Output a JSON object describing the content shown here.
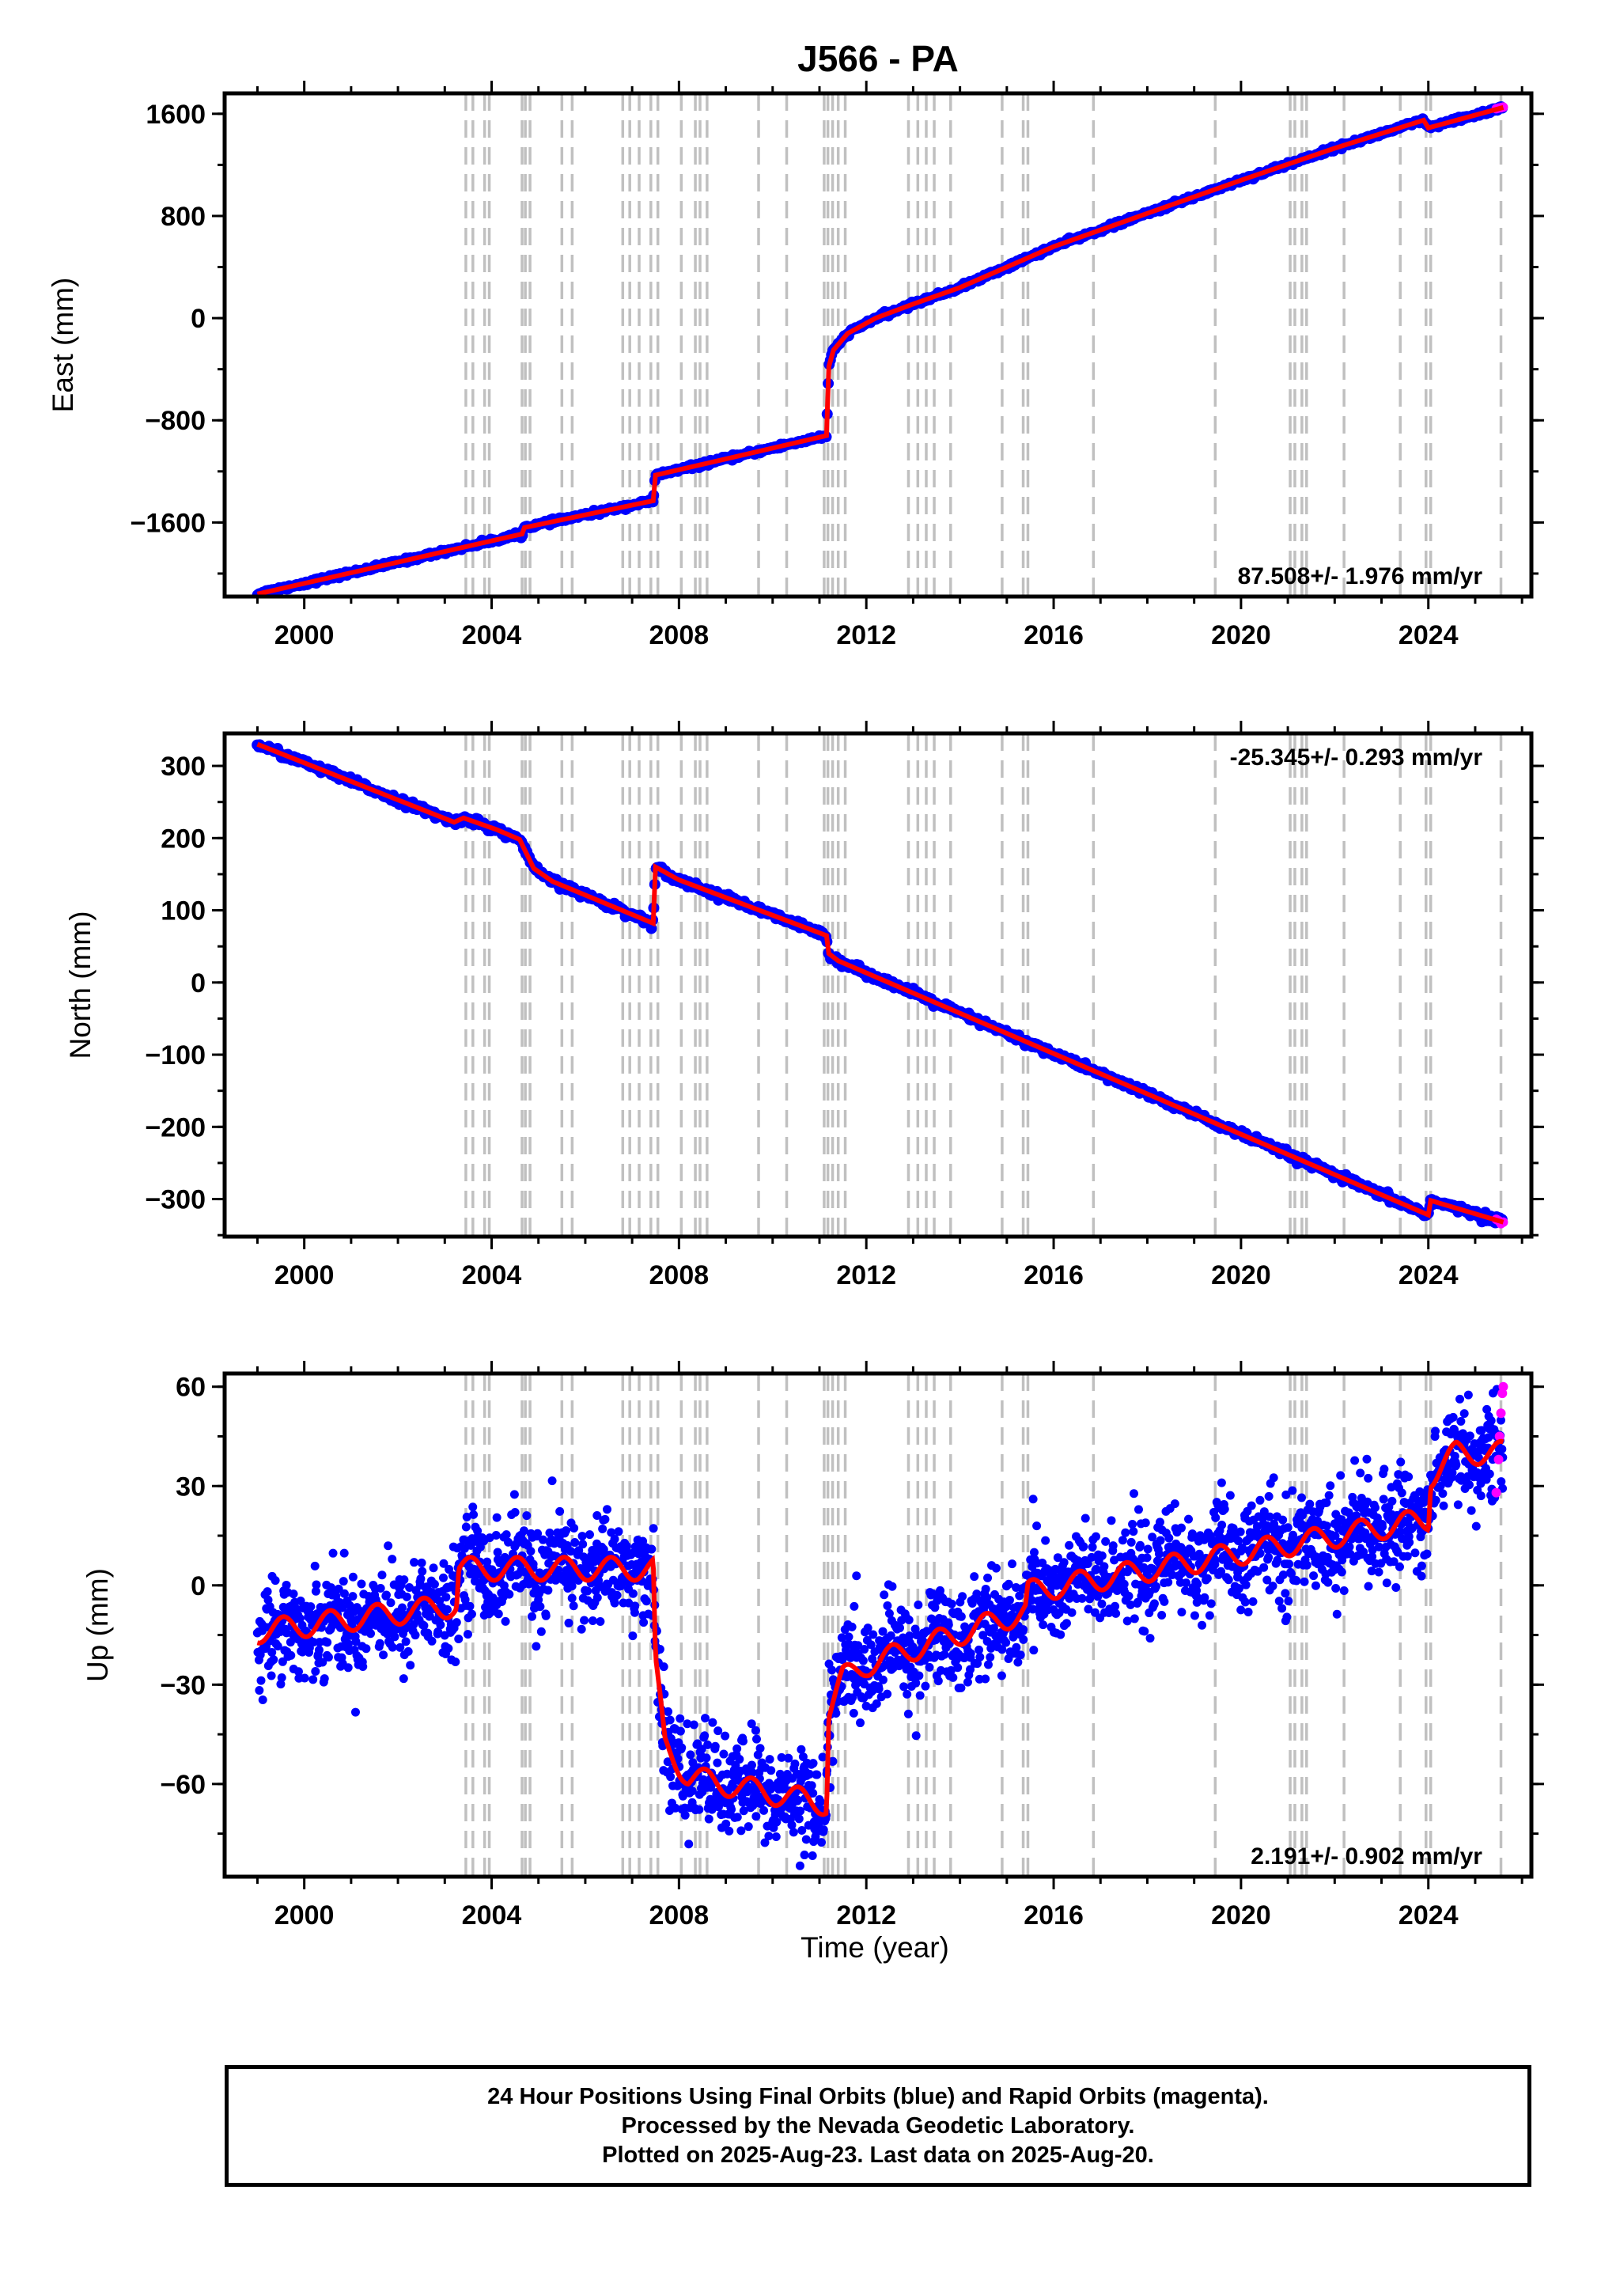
{
  "title": "J566 - PA",
  "xlabel": "Time (year)",
  "footer": {
    "line1": "24 Hour Positions Using Final Orbits (blue) and Rapid Orbits (magenta).",
    "line2": "Processed by the Nevada Geodetic Laboratory.",
    "line3": "Plotted on 2025-Aug-23. Last data on 2025-Aug-20."
  },
  "colors": {
    "final_orbits": "#0000ff",
    "rapid_orbits": "#ff00ff",
    "model": "#ff0000",
    "event_lines": "#c0c0c0"
  },
  "chart_data": [
    {
      "type": "scatter",
      "name": "east",
      "ylabel": "East (mm)",
      "xlim": [
        1998.3,
        2026.2
      ],
      "ylim": [
        -2180,
        1760
      ],
      "xticks": [
        2000,
        2004,
        2008,
        2012,
        2016,
        2020,
        2024
      ],
      "yticks": [
        -1600,
        -800,
        0,
        800,
        1600
      ],
      "ytick_labels": [
        "−1600",
        "−800",
        "0",
        "800",
        "1600"
      ],
      "rate": "87.508+/- 1.976 mm/yr",
      "rate_position": "bottom-right",
      "model_x": [
        1999.0,
        2004.65,
        2004.7,
        2007.45,
        2007.5,
        2011.15,
        2011.2,
        2011.3,
        2011.6,
        2012.2,
        2013.0,
        2014.0,
        2016.0,
        2018.0,
        2020.0,
        2022.0,
        2023.9,
        2024.0,
        2025.6
      ],
      "model_y": [
        -2160,
        -1690,
        -1640,
        -1430,
        -1230,
        -920,
        -380,
        -250,
        -120,
        0,
        110,
        240,
        560,
        820,
        1080,
        1330,
        1550,
        1490,
        1650
      ],
      "rapid_x": [
        2025.45,
        2025.5,
        2025.55,
        2025.6
      ],
      "rapid_y": [
        1640,
        1645,
        1648,
        1652
      ]
    },
    {
      "type": "scatter",
      "name": "north",
      "ylabel": "North (mm)",
      "xlim": [
        1998.3,
        2026.2
      ],
      "ylim": [
        -352,
        345
      ],
      "xticks": [
        2000,
        2004,
        2008,
        2012,
        2016,
        2020,
        2024
      ],
      "yticks": [
        -300,
        -200,
        -100,
        0,
        100,
        200,
        300
      ],
      "ytick_labels": [
        "−300",
        "−200",
        "−100",
        "0",
        "100",
        "200",
        "300"
      ],
      "rate": "-25.345+/- 0.293 mm/yr",
      "rate_position": "top-right",
      "model_x": [
        1999.0,
        2003.2,
        2003.4,
        2004.1,
        2004.6,
        2004.75,
        2004.9,
        2005.3,
        2007.45,
        2007.5,
        2008.0,
        2011.15,
        2011.2,
        2011.4,
        2024.0,
        2024.05,
        2025.6
      ],
      "model_y": [
        330,
        222,
        228,
        212,
        198,
        178,
        158,
        140,
        82,
        160,
        142,
        65,
        40,
        30,
        -322,
        -302,
        -332
      ],
      "rapid_x": [
        2025.45,
        2025.5,
        2025.55,
        2025.6
      ],
      "rapid_y": [
        -328,
        -330,
        -334,
        -332
      ]
    },
    {
      "type": "scatter",
      "name": "up",
      "ylabel": "Up (mm)",
      "xlim": [
        1998.3,
        2026.2
      ],
      "ylim": [
        -88,
        64
      ],
      "xticks": [
        2000,
        2004,
        2008,
        2012,
        2016,
        2020,
        2024
      ],
      "yticks": [
        -60,
        -30,
        0,
        30,
        60
      ],
      "ytick_labels": [
        "−60",
        "−30",
        "0",
        "30",
        "60"
      ],
      "rate": "2.191+/- 0.902 mm/yr",
      "rate_position": "bottom-right",
      "model_x": [
        1999.0,
        2003.25,
        2003.3,
        2007.45,
        2007.5,
        2007.7,
        2008.2,
        2011.15,
        2011.2,
        2011.5,
        2012.0,
        2015.4,
        2015.45,
        2024.0,
        2024.05,
        2024.6,
        2025.6
      ],
      "model_y": [
        -14,
        -6,
        5,
        5,
        -25,
        -48,
        -58,
        -66,
        -38,
        -28,
        -24,
        -8,
        -2,
        20,
        33,
        40,
        40
      ],
      "rapid_x": [
        2025.45,
        2025.5,
        2025.52,
        2025.55,
        2025.58,
        2025.6
      ],
      "rapid_y": [
        28,
        38,
        45,
        52,
        58,
        60
      ]
    }
  ],
  "event_lines_x": [
    2003.45,
    2003.6,
    2003.85,
    2003.95,
    2004.65,
    2004.72,
    2004.82,
    2005.5,
    2005.72,
    2006.8,
    2006.95,
    2007.15,
    2007.4,
    2007.55,
    2008.05,
    2008.35,
    2008.45,
    2008.6,
    2009.7,
    2010.3,
    2011.1,
    2011.18,
    2011.28,
    2011.4,
    2011.55,
    2012.9,
    2013.1,
    2013.28,
    2013.45,
    2013.8,
    2014.9,
    2015.35,
    2015.45,
    2016.85,
    2019.45,
    2021.05,
    2021.15,
    2021.3,
    2021.4,
    2022.2,
    2023.4,
    2023.95,
    2024.05,
    2025.55
  ]
}
